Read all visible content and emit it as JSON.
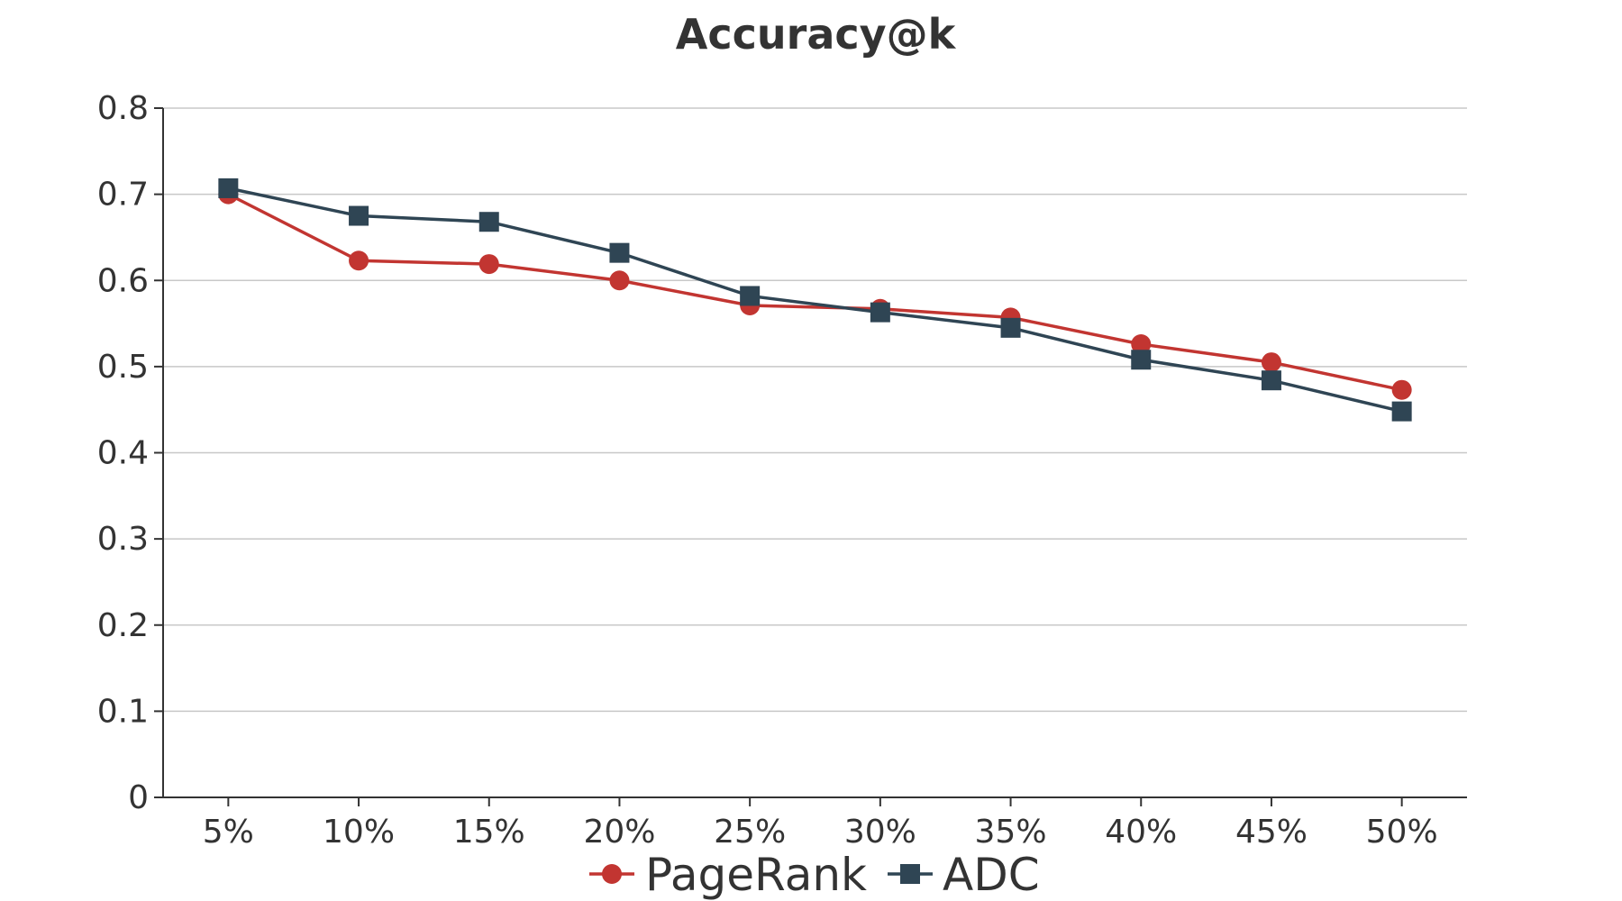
{
  "chart_data": {
    "type": "line",
    "title": "Accuracy@k",
    "xlabel": "",
    "ylabel": "",
    "categories": [
      "5%",
      "10%",
      "15%",
      "20%",
      "25%",
      "30%",
      "35%",
      "40%",
      "45%",
      "50%"
    ],
    "ylim": [
      0,
      0.8
    ],
    "yticks": [
      0,
      0.1,
      0.2,
      0.3,
      0.4,
      0.5,
      0.6,
      0.7,
      0.8
    ],
    "ytick_labels": [
      "0",
      "0.1",
      "0.2",
      "0.3",
      "0.4",
      "0.5",
      "0.6",
      "0.7",
      "0.8"
    ],
    "grid": true,
    "legend_position": "bottom",
    "series": [
      {
        "name": "PageRank",
        "color": "#c23531",
        "marker": "circle",
        "values": [
          0.7,
          0.623,
          0.619,
          0.6,
          0.571,
          0.567,
          0.557,
          0.526,
          0.505,
          0.473
        ]
      },
      {
        "name": "ADC",
        "color": "#2f4554",
        "marker": "square",
        "values": [
          0.707,
          0.675,
          0.668,
          0.632,
          0.582,
          0.563,
          0.545,
          0.508,
          0.484,
          0.448
        ]
      }
    ]
  }
}
